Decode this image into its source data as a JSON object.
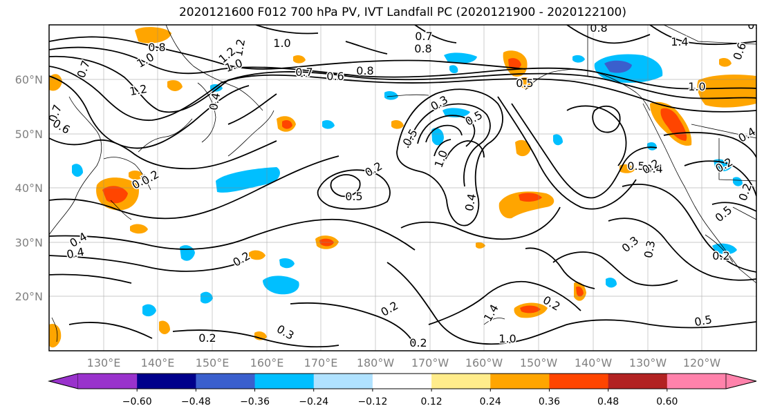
{
  "title": "2020121600 F012 700 hPa PV, IVT Landfall PC (2020121900 - 2020122100)",
  "map": {
    "lat_labels": [
      "20°N",
      "30°N",
      "40°N",
      "50°N",
      "60°N"
    ],
    "lon_labels": [
      "130°E",
      "140°E",
      "150°E",
      "160°E",
      "170°E",
      "180°W",
      "170°W",
      "160°W",
      "150°W",
      "140°W",
      "130°W",
      "120°W"
    ],
    "contour_labels": [
      "0.8",
      "1.0",
      "1.2",
      "1.2",
      "0.7",
      "1.2",
      "1.0",
      "0.4",
      "0.7",
      "0.6",
      "0.8",
      "0.7",
      "0.8",
      "0.5",
      "1.4",
      "1.0",
      "0.6",
      "0.8",
      "0.8",
      "1.0",
      "0.7",
      "0.6",
      "1.0",
      "0.5",
      "0.2",
      "0.3",
      "0.5",
      "0.4",
      "0.5",
      "0.4",
      "0.2",
      "0.2",
      "0.4",
      "0.2",
      "0.5",
      "0.3",
      "0.3",
      "0.2",
      "0.2",
      "0.2",
      "0.3",
      "0.2",
      "0.2",
      "1.0",
      "1.4",
      "0.2",
      "0.5",
      "0.4",
      "0.4",
      "0.5",
      "0.2",
      "0.5"
    ]
  },
  "colorbar": {
    "ticks": [
      "−0.60",
      "−0.48",
      "−0.36",
      "−0.24",
      "−0.12",
      "0.12",
      "0.24",
      "0.36",
      "0.48",
      "0.60"
    ],
    "colors": [
      "#9932CC",
      "#00008B",
      "#3A5FCD",
      "#00BFFF",
      "#B0E2FF",
      "#FFFFFF",
      "#FFEC8B",
      "#FFA500",
      "#FF4500",
      "#B22222",
      "#FF82AB"
    ]
  },
  "colors": {
    "orange": "#FFA500",
    "red": "#FF4500",
    "skyblue": "#00BFFF",
    "lightblue": "#B0E2FF",
    "blue": "#3A5FCD",
    "gold": "#FFEC8B",
    "tick_label": "#808080"
  }
}
